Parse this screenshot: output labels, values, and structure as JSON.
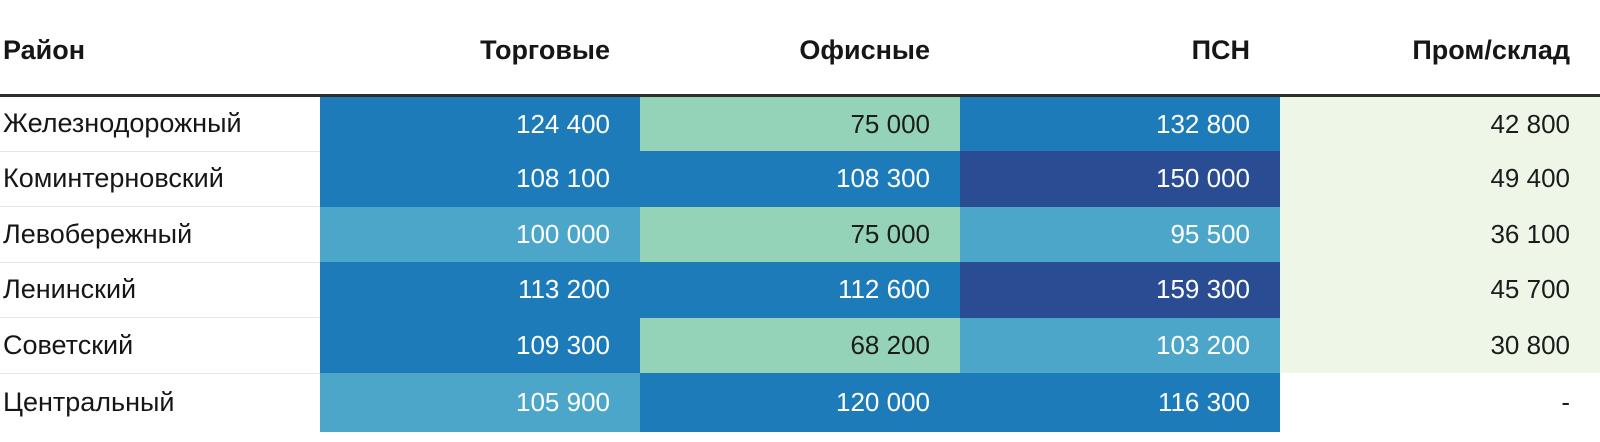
{
  "colors": {
    "blue": "#1e7bb9",
    "navy": "#2a4c92",
    "lightBlue": "#4ba6c9",
    "green": "#94d3b8",
    "lightGreen": "#edf6e7",
    "white": "#ffffff",
    "headerRule": "#2d2d2d",
    "rowRule": "#e4e6e4",
    "textDark": "#161616",
    "textLight": "#ffffff"
  },
  "table": {
    "headers": [
      "Район",
      "Торговые",
      "Офисные",
      "ПСН",
      "Пром/склад"
    ],
    "rows": [
      {
        "label": "Железнодорожный",
        "cells": [
          {
            "text": "124 400",
            "bg": "blue",
            "fg": "light"
          },
          {
            "text": "75 000",
            "bg": "green",
            "fg": "dark"
          },
          {
            "text": "132 800",
            "bg": "blue",
            "fg": "light"
          },
          {
            "text": "42 800",
            "bg": "lightGreen",
            "fg": "dark"
          }
        ]
      },
      {
        "label": "Коминтерновский",
        "cells": [
          {
            "text": "108 100",
            "bg": "blue",
            "fg": "light"
          },
          {
            "text": "108 300",
            "bg": "blue",
            "fg": "light"
          },
          {
            "text": "150 000",
            "bg": "navy",
            "fg": "light"
          },
          {
            "text": "49 400",
            "bg": "lightGreen",
            "fg": "dark"
          }
        ]
      },
      {
        "label": "Левобережный",
        "cells": [
          {
            "text": "100 000",
            "bg": "lightBlue",
            "fg": "light"
          },
          {
            "text": "75 000",
            "bg": "green",
            "fg": "dark"
          },
          {
            "text": "95 500",
            "bg": "lightBlue",
            "fg": "light"
          },
          {
            "text": "36 100",
            "bg": "lightGreen",
            "fg": "dark"
          }
        ]
      },
      {
        "label": "Ленинский",
        "cells": [
          {
            "text": "113 200",
            "bg": "blue",
            "fg": "light"
          },
          {
            "text": "112 600",
            "bg": "blue",
            "fg": "light"
          },
          {
            "text": "159 300",
            "bg": "navy",
            "fg": "light"
          },
          {
            "text": "45 700",
            "bg": "lightGreen",
            "fg": "dark"
          }
        ]
      },
      {
        "label": "Советский",
        "cells": [
          {
            "text": "109 300",
            "bg": "blue",
            "fg": "light"
          },
          {
            "text": "68 200",
            "bg": "green",
            "fg": "dark"
          },
          {
            "text": "103 200",
            "bg": "lightBlue",
            "fg": "light"
          },
          {
            "text": "30 800",
            "bg": "lightGreen",
            "fg": "dark"
          }
        ]
      },
      {
        "label": "Центральный",
        "cells": [
          {
            "text": "105 900",
            "bg": "lightBlue",
            "fg": "light"
          },
          {
            "text": "120 000",
            "bg": "blue",
            "fg": "light"
          },
          {
            "text": "116 300",
            "bg": "blue",
            "fg": "light"
          },
          {
            "text": "-",
            "bg": "white",
            "fg": "dark"
          }
        ]
      }
    ]
  },
  "chart_data": {
    "type": "heatmap",
    "title": "",
    "row_header": "Район",
    "rows": [
      "Железнодорожный",
      "Коминтерновский",
      "Левобережный",
      "Ленинский",
      "Советский",
      "Центральный"
    ],
    "columns": [
      "Торговые",
      "Офисные",
      "ПСН",
      "Пром/склад"
    ],
    "values": [
      [
        124400,
        75000,
        132800,
        42800
      ],
      [
        108100,
        108300,
        150000,
        49400
      ],
      [
        100000,
        75000,
        95500,
        36100
      ],
      [
        113200,
        112600,
        159300,
        45700
      ],
      [
        109300,
        68200,
        103200,
        30800
      ],
      [
        105900,
        120000,
        116300,
        null
      ]
    ],
    "value_format": "thousands separated by space",
    "color_encoding": "higher values → darker blue, lower values → lighter green",
    "legend": "none",
    "grid": "off"
  }
}
